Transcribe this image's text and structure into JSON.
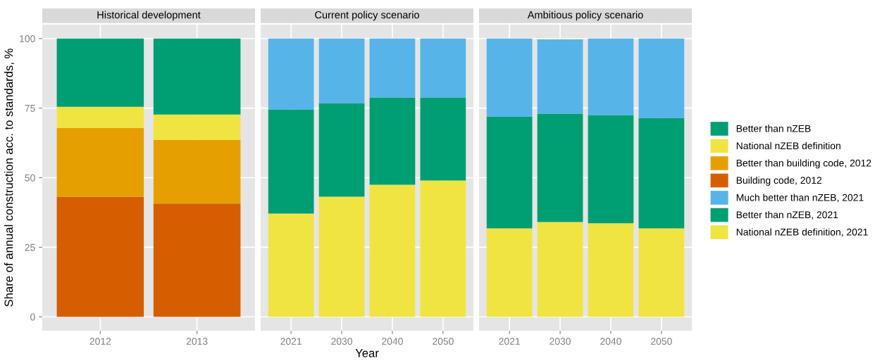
{
  "chart_data": [
    {
      "type": "bar",
      "title": "Historical development",
      "ylabel": "Share of annual construction acc. to standards, %",
      "categories": [
        "2012",
        "2013"
      ],
      "stacked": true,
      "ylim": [
        -5,
        105
      ],
      "yticks": [
        0,
        25,
        50,
        75,
        100
      ],
      "grid": true,
      "legend": "right",
      "series": [
        {
          "name": "Building code, 2012",
          "color": "#d55e00",
          "values": [
            43.2,
            40.7
          ]
        },
        {
          "name": "Better than building code, 2012",
          "color": "#e69f00",
          "values": [
            24.7,
            22.9
          ]
        },
        {
          "name": "National nZEB definition",
          "color": "#f0e442",
          "values": [
            7.6,
            9.1
          ]
        },
        {
          "name": "Better than nZEB",
          "color": "#009e73",
          "values": [
            24.5,
            27.3
          ]
        }
      ]
    },
    {
      "type": "bar",
      "title": "Current policy scenario",
      "xlabel": "Year",
      "categories": [
        "2021",
        "2030",
        "2040",
        "2050"
      ],
      "stacked": true,
      "ylim": [
        -5,
        105
      ],
      "yticks": [
        0,
        25,
        50,
        75,
        100
      ],
      "tick_labels": "x",
      "grid": true,
      "legend": "right",
      "series": [
        {
          "name": "National nZEB definition, 2021",
          "color": "#f0e442",
          "values": [
            37.1,
            43.2,
            47.5,
            49.0
          ]
        },
        {
          "name": "Better than nZEB, 2021",
          "color": "#009e73",
          "values": [
            37.4,
            33.6,
            31.3,
            29.8
          ]
        },
        {
          "name": "Much better than nZEB, 2021",
          "color": "#56b4e9",
          "values": [
            25.5,
            23.2,
            21.2,
            21.2
          ]
        }
      ]
    },
    {
      "type": "bar",
      "title": "Ambitious policy scenario",
      "categories": [
        "2021",
        "2030",
        "2040",
        "2050"
      ],
      "stacked": true,
      "ylim": [
        -5,
        105
      ],
      "yticks": [
        0,
        25,
        50,
        75,
        100
      ],
      "tick_labels": "x",
      "grid": true,
      "series": [
        {
          "color": "#f0e442",
          "values": [
            31.8,
            34.1,
            33.6,
            31.8
          ]
        },
        {
          "color": "#009e73",
          "values": [
            40.2,
            38.9,
            38.9,
            39.7
          ]
        },
        {
          "color": "#56b4e9",
          "values": [
            28.0,
            26.7,
            27.5,
            28.5
          ]
        }
      ]
    }
  ]
}
